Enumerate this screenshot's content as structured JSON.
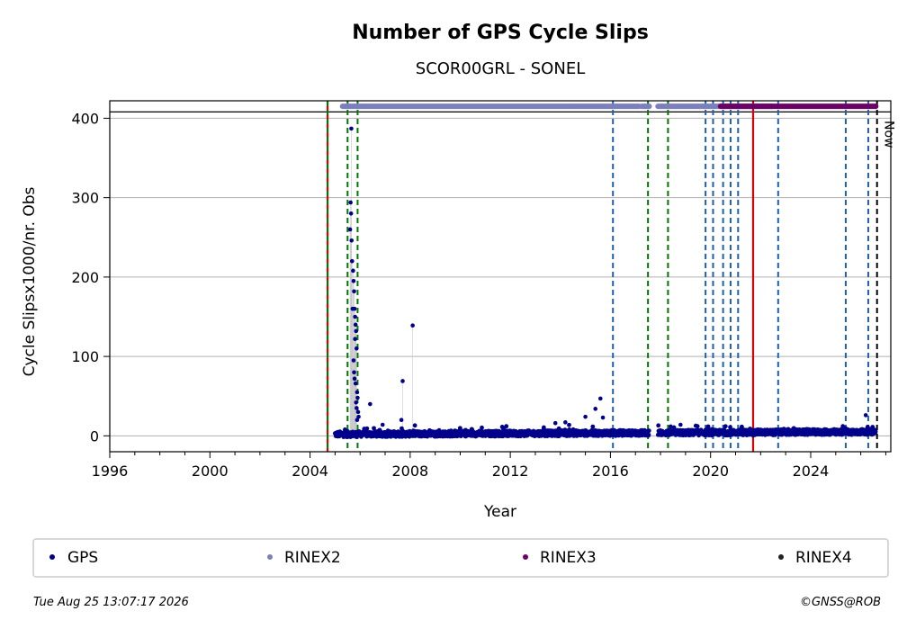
{
  "chart_data": {
    "type": "scatter",
    "title": "Number of GPS Cycle Slips",
    "subtitle": "SCOR00GRL - SONEL",
    "xlabel": "Year",
    "ylabel": "Cycle Slipsx1000/nr. Obs",
    "xlim": [
      1996,
      2027.2
    ],
    "ylim": [
      -20,
      422
    ],
    "x_ticks": [
      1996,
      2000,
      2004,
      2008,
      2012,
      2016,
      2020,
      2024
    ],
    "y_ticks": [
      0,
      100,
      200,
      300,
      400
    ],
    "grid": "horizontal",
    "reference_line_y": 408,
    "now_label": "Now",
    "now_x": 2026.65,
    "vertical_lines": {
      "red_solid": [
        2004.7,
        2021.7
      ],
      "green_dashed": [
        2004.7,
        2005.5,
        2005.9,
        2017.5,
        2018.3
      ],
      "blue_dashed": [
        2016.1,
        2019.8,
        2020.1,
        2020.5,
        2020.8,
        2021.1,
        2022.7,
        2025.4,
        2026.3
      ],
      "black_dashed": [
        2026.65
      ]
    },
    "series": [
      {
        "name": "GPS",
        "color": "#00008b",
        "spikes": [
          [
            2005.6,
            260
          ],
          [
            2005.62,
            294
          ],
          [
            2005.64,
            280
          ],
          [
            2005.66,
            246
          ],
          [
            2005.68,
            220
          ],
          [
            2005.65,
            387
          ],
          [
            2005.72,
            208
          ],
          [
            2005.74,
            195
          ],
          [
            2005.76,
            182
          ],
          [
            2005.7,
            160
          ],
          [
            2005.78,
            160
          ],
          [
            2005.8,
            150
          ],
          [
            2005.82,
            140
          ],
          [
            2005.84,
            132
          ],
          [
            2005.8,
            122
          ],
          [
            2005.86,
            110
          ],
          [
            2005.74,
            95
          ],
          [
            2005.76,
            80
          ],
          [
            2005.78,
            72
          ],
          [
            2005.82,
            66
          ],
          [
            2005.88,
            55
          ],
          [
            2005.9,
            48
          ],
          [
            2005.84,
            42
          ],
          [
            2005.86,
            35
          ],
          [
            2005.92,
            30
          ],
          [
            2005.94,
            24
          ],
          [
            2005.88,
            20
          ],
          [
            2006.4,
            40
          ],
          [
            2006.9,
            14
          ],
          [
            2007.7,
            69
          ],
          [
            2007.65,
            20
          ],
          [
            2008.1,
            139
          ],
          [
            2013.8,
            16
          ],
          [
            2014.2,
            17
          ],
          [
            2015.0,
            24
          ],
          [
            2015.4,
            34
          ],
          [
            2015.6,
            47
          ],
          [
            2015.7,
            23
          ],
          [
            2018.8,
            14
          ],
          [
            2026.2,
            26
          ]
        ],
        "baseline": {
          "x_start": 2005.0,
          "x_end": 2026.6,
          "gap": [
            2017.55,
            2017.9
          ],
          "level_early": 2,
          "level_late": 5
        }
      },
      {
        "name": "RINEX2",
        "color": "#7b7fbd",
        "y": 415,
        "ranges": [
          [
            2005.3,
            2017.15
          ],
          [
            2017.25,
            2017.55
          ],
          [
            2017.9,
            2022.5
          ]
        ]
      },
      {
        "name": "RINEX3",
        "color": "#6b0066",
        "y": 415,
        "ranges": [
          [
            2020.4,
            2026.6
          ]
        ]
      },
      {
        "name": "RINEX4",
        "color": "#222222",
        "y": 415,
        "ranges": []
      }
    ]
  },
  "legend": [
    "GPS",
    "RINEX2",
    "RINEX3",
    "RINEX4"
  ],
  "footer": {
    "timestamp": "Tue Aug 25 13:07:17 2026",
    "copyright": "©GNSS@ROB"
  }
}
